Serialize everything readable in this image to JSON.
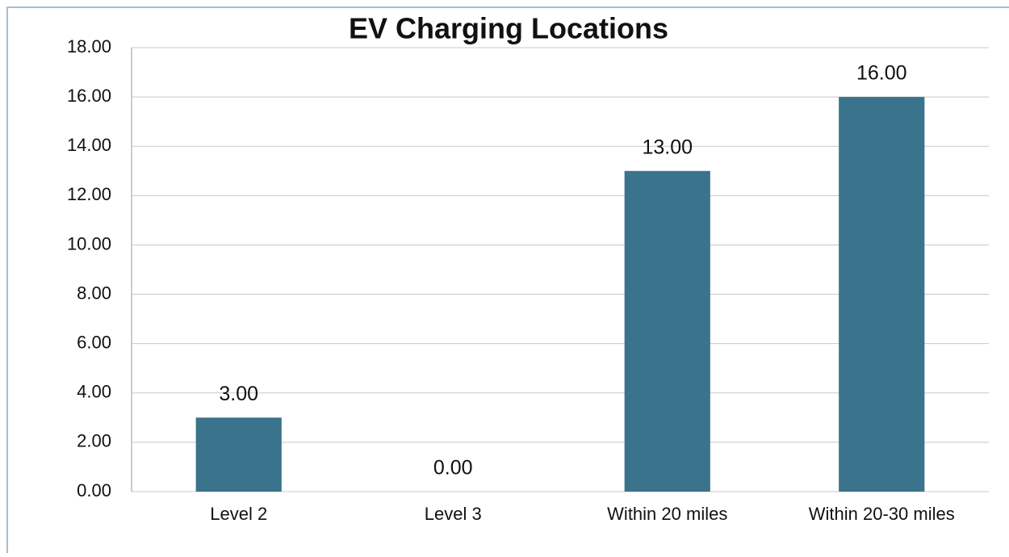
{
  "chart_data": {
    "type": "bar",
    "title": "EV Charging Locations",
    "categories": [
      "Level 2",
      "Level 3",
      "Within 20 miles",
      "Within 20-30 miles"
    ],
    "values": [
      3,
      0,
      13,
      16
    ],
    "value_labels": [
      "3.00",
      "0.00",
      "13.00",
      "16.00"
    ],
    "color": "#3a738c",
    "ylim": [
      0,
      18
    ],
    "yticks": [
      {
        "value": 0,
        "label": "0.00"
      },
      {
        "value": 2,
        "label": "2.00"
      },
      {
        "value": 4,
        "label": "4.00"
      },
      {
        "value": 6,
        "label": "6.00"
      },
      {
        "value": 8,
        "label": "8.00"
      },
      {
        "value": 10,
        "label": "10.00"
      },
      {
        "value": 12,
        "label": "12.00"
      },
      {
        "value": 14,
        "label": "14.00"
      },
      {
        "value": 16,
        "label": "16.00"
      },
      {
        "value": 18,
        "label": "18.00"
      }
    ],
    "grid": true
  }
}
